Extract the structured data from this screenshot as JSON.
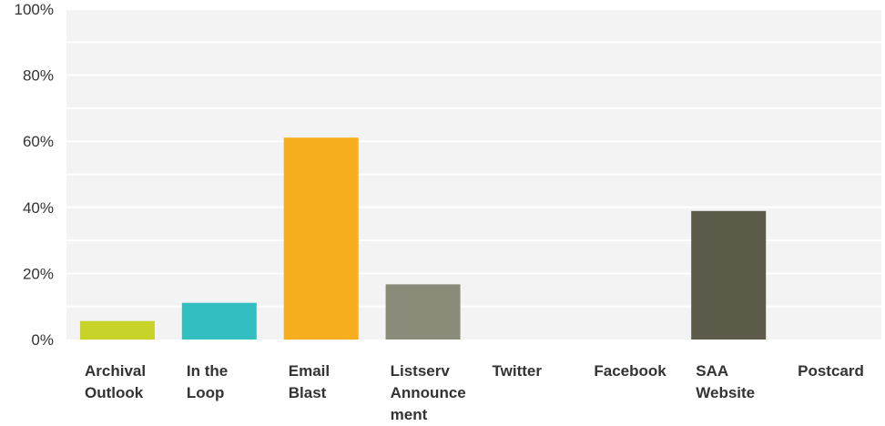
{
  "chart_data": {
    "type": "bar",
    "categories": [
      "Archival Outlook",
      "In the Loop",
      "Email Blast",
      "Listserv Announcement",
      "Twitter",
      "Facebook",
      "SAA Website",
      "Postcard"
    ],
    "category_label_lines": [
      [
        "Archival",
        "Outlook"
      ],
      [
        "In the",
        "Loop"
      ],
      [
        "Email",
        "Blast"
      ],
      [
        "Listserv",
        "Announce",
        "ment"
      ],
      [
        "Twitter"
      ],
      [
        "Facebook"
      ],
      [
        "SAA",
        "Website"
      ],
      [
        "Postcard"
      ]
    ],
    "values": [
      5.6,
      11.1,
      61.1,
      16.7,
      0,
      0,
      38.9,
      0
    ],
    "bar_colors": [
      "#c8d32a",
      "#33bfc1",
      "#f6ae1f",
      "#8b8b79",
      "#8b8b79",
      "#8b8b79",
      "#5c5a49",
      "#5c5a49"
    ],
    "y_ticks": [
      0,
      20,
      40,
      60,
      80,
      100
    ],
    "y_tick_labels": [
      "0%",
      "20%",
      "40%",
      "60%",
      "80%",
      "100%"
    ],
    "ylim": [
      0,
      100
    ],
    "grid": true,
    "plot_background": "#f3f3f3",
    "title": "",
    "xlabel": "",
    "ylabel": ""
  }
}
